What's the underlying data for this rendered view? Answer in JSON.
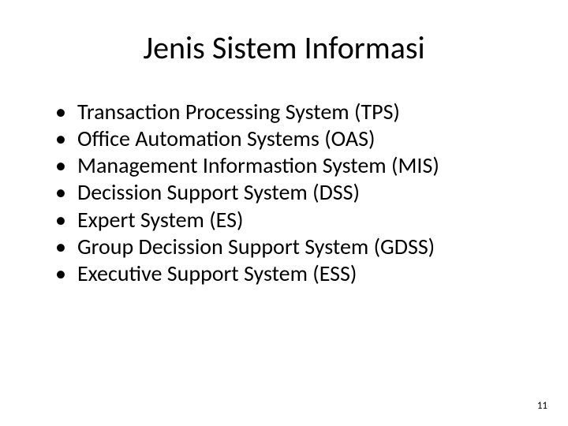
{
  "title": "Jenis Sistem Informasi",
  "items": [
    "Transaction Processing System (TPS)",
    "Office Automation Systems (OAS)",
    "Management Informastion System (MIS)",
    "Decission Support System (DSS)",
    "Expert System (ES)",
    "Group Decission Support System (GDSS)",
    "Executive Support System (ESS)"
  ],
  "pageNumber": "11",
  "style": {
    "background_color": "#ffffff",
    "text_color": "#000000",
    "title_fontsize": 40,
    "body_fontsize": 28,
    "pagenum_fontsize": 13,
    "font_family": "Calibri, Arial, sans-serif",
    "bullet_char": "•"
  }
}
